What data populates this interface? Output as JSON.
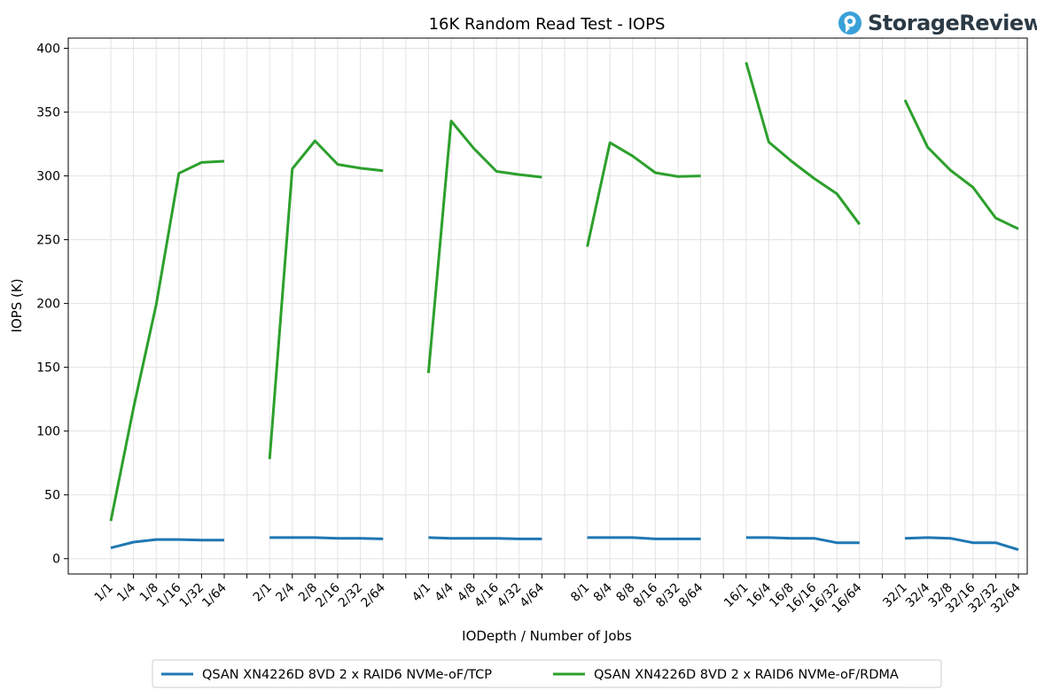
{
  "logo": {
    "text": "StorageReview",
    "accent": "#3aa0d8"
  },
  "chart_data": {
    "type": "line",
    "title": "16K Random Read Test - IOPS",
    "xlabel": "IODepth / Number of Jobs",
    "ylabel": "IOPS (K)",
    "ylim": [
      -12,
      408
    ],
    "yticks": [
      0,
      50,
      100,
      150,
      200,
      250,
      300,
      350,
      400
    ],
    "grid": true,
    "legend_position": "bottom-center",
    "categories": [
      "1/1",
      "1/4",
      "1/8",
      "1/16",
      "1/32",
      "1/64",
      "",
      "2/1",
      "2/4",
      "2/8",
      "2/16",
      "2/32",
      "2/64",
      "",
      "4/1",
      "4/4",
      "4/8",
      "4/16",
      "4/32",
      "4/64",
      "",
      "8/1",
      "8/4",
      "8/8",
      "8/16",
      "8/32",
      "8/64",
      "",
      "16/1",
      "16/4",
      "16/8",
      "16/16",
      "16/32",
      "16/64",
      "",
      "32/1",
      "32/4",
      "32/8",
      "32/16",
      "32/32",
      "32/64"
    ],
    "series": [
      {
        "name": "QSAN XN4226D 8VD 2 x RAID6 NVMe-oF/TCP",
        "color": "#1f77b4",
        "values": [
          8.5,
          13,
          15,
          15,
          14.5,
          14.5,
          null,
          16.5,
          16.5,
          16.5,
          16,
          16,
          15.5,
          null,
          16.5,
          16,
          16,
          16,
          15.5,
          15.5,
          null,
          16.5,
          16.5,
          16.5,
          15.5,
          15.5,
          15.5,
          null,
          16.5,
          16.5,
          16,
          16,
          12.5,
          12.5,
          null,
          16,
          16.5,
          16,
          12.5,
          12.5,
          7
        ]
      },
      {
        "name": "QSAN XN4226D 8VD 2 x RAID6 NVMe-oF/RDMA",
        "color": "#2ca02c",
        "values": [
          29.5,
          118,
          199,
          302,
          310.5,
          311.5,
          null,
          78,
          305.5,
          327.5,
          309,
          306,
          304,
          null,
          145.5,
          343,
          321.5,
          303.5,
          301,
          299,
          null,
          244.5,
          326,
          315.5,
          302.5,
          299.5,
          300,
          null,
          389,
          326.5,
          311.5,
          298,
          286,
          262,
          null,
          359.5,
          322.5,
          304.5,
          291,
          267,
          258.5
        ]
      }
    ]
  }
}
